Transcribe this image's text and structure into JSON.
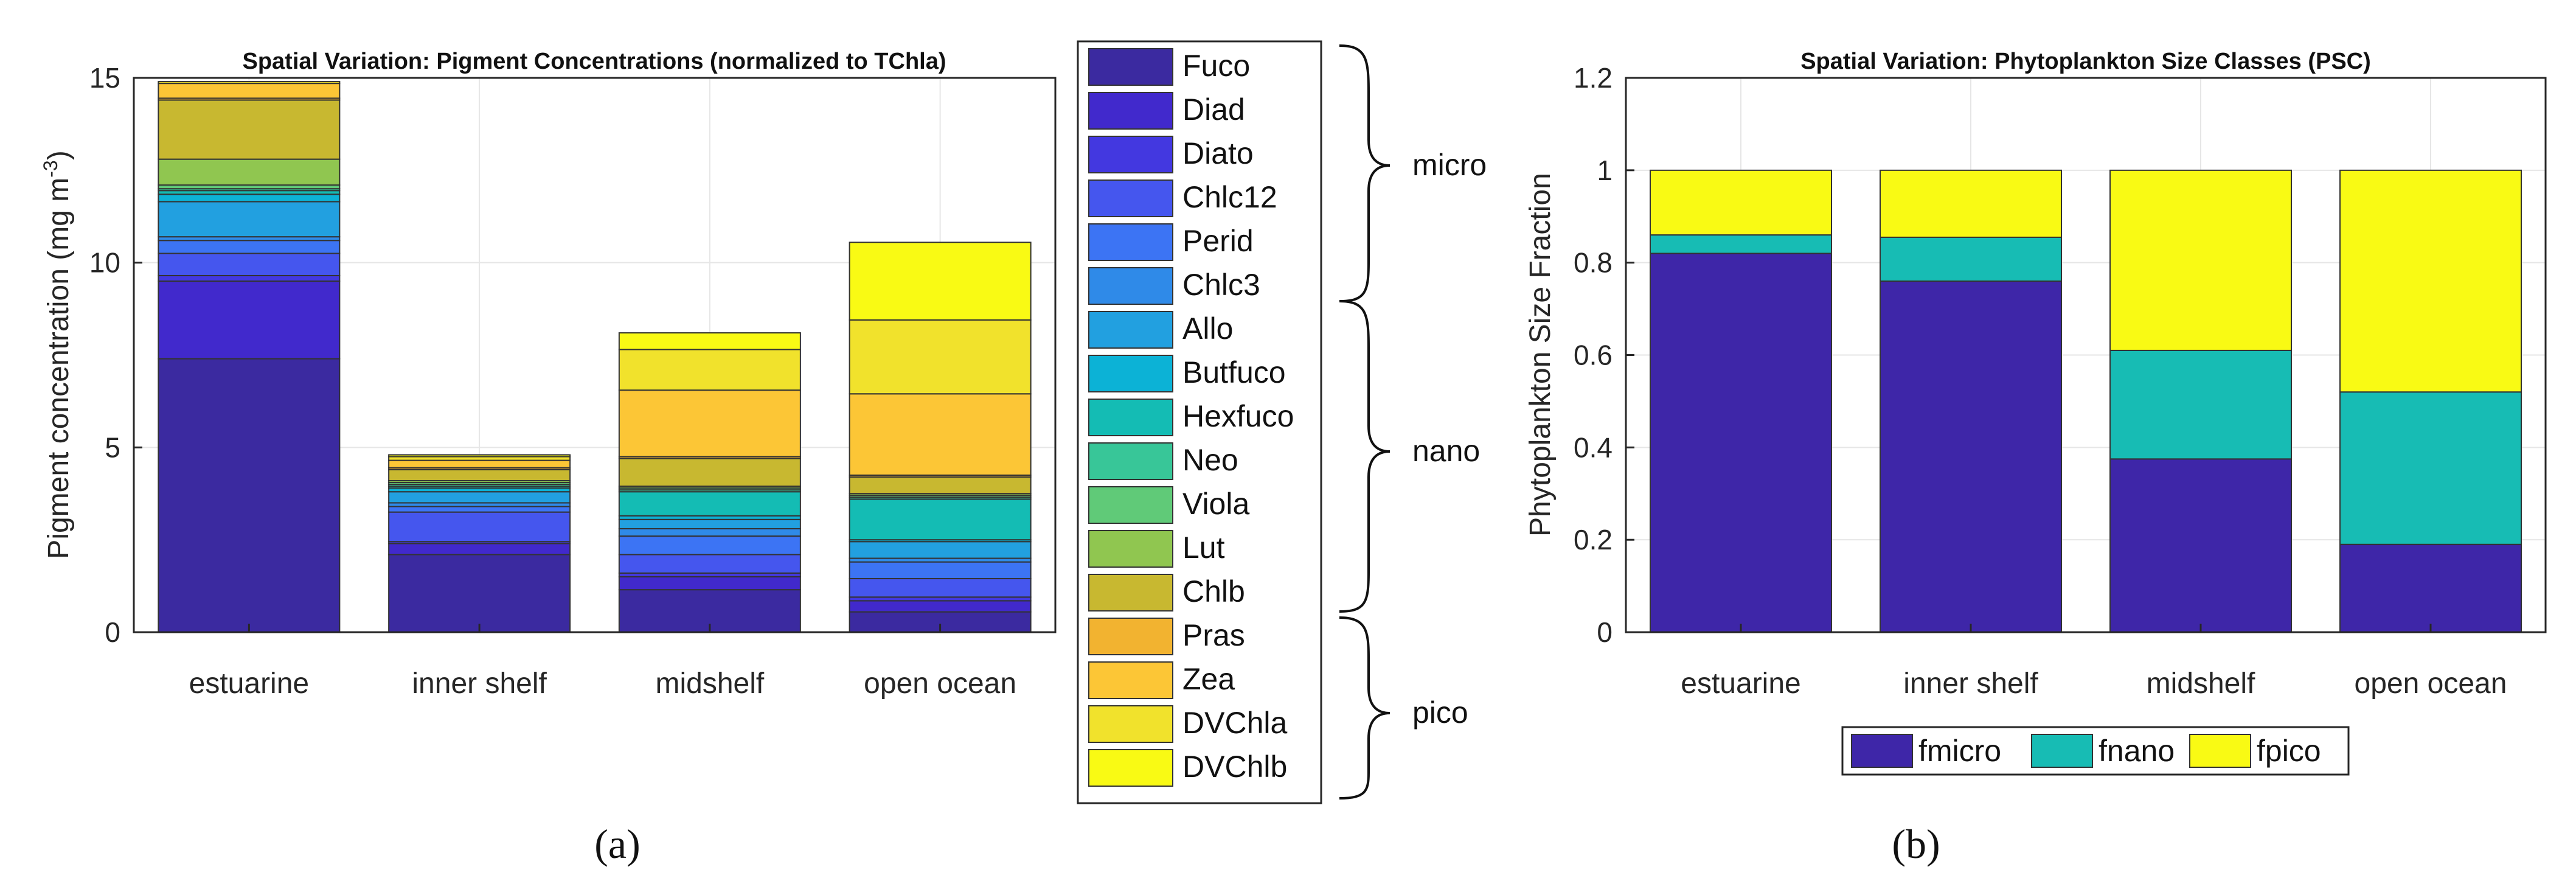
{
  "chart_data": [
    {
      "type": "bar",
      "stacked": true,
      "title": "Spatial Variation: Pigment Concentrations (normalized to TChla)",
      "xlabel": "",
      "ylabel_main": "Pigment concentration (mg m",
      "ylabel_sup": "-3",
      "ylabel_close": ")",
      "ylim": [
        0,
        15
      ],
      "yticks": [
        0,
        5,
        10,
        15
      ],
      "ytick_labels": [
        "0",
        "5",
        "10",
        "15"
      ],
      "grid": true,
      "categories": [
        "estuarine",
        "inner shelf",
        "midshelf",
        "open ocean"
      ],
      "series": [
        {
          "name": "Fuco",
          "color": "#3b2aa0",
          "values": [
            7.4,
            2.1,
            1.15,
            0.55
          ]
        },
        {
          "name": "Diad",
          "color": "#4129cc",
          "values": [
            2.1,
            0.3,
            0.35,
            0.3
          ]
        },
        {
          "name": "Diato",
          "color": "#4338e0",
          "values": [
            0.15,
            0.05,
            0.1,
            0.1
          ]
        },
        {
          "name": "Chlc12",
          "color": "#4556ee",
          "values": [
            0.6,
            0.8,
            0.5,
            0.5
          ]
        },
        {
          "name": "Perid",
          "color": "#3c74f4",
          "values": [
            0.35,
            0.15,
            0.5,
            0.45
          ]
        },
        {
          "name": "Chlc3",
          "color": "#2f8ae8",
          "values": [
            0.1,
            0.1,
            0.2,
            0.1
          ]
        },
        {
          "name": "Allo",
          "color": "#22a0e0",
          "values": [
            0.95,
            0.3,
            0.25,
            0.45
          ]
        },
        {
          "name": "Butfuco",
          "color": "#0cb2d6",
          "values": [
            0.2,
            0.1,
            0.1,
            0.05
          ]
        },
        {
          "name": "Hexfuco",
          "color": "#14bcb4",
          "values": [
            0.1,
            0.05,
            0.65,
            1.1
          ]
        },
        {
          "name": "Neo",
          "color": "#38c698",
          "values": [
            0.05,
            0.05,
            0.05,
            0.05
          ]
        },
        {
          "name": "Viola",
          "color": "#60ca78",
          "values": [
            0.1,
            0.05,
            0.05,
            0.05
          ]
        },
        {
          "name": "Lut",
          "color": "#90c650",
          "values": [
            0.7,
            0.05,
            0.05,
            0.05
          ]
        },
        {
          "name": "Chlb",
          "color": "#c8b830",
          "values": [
            1.6,
            0.3,
            0.75,
            0.45
          ]
        },
        {
          "name": "Pras",
          "color": "#f2b330",
          "values": [
            0.05,
            0.05,
            0.05,
            0.05
          ]
        },
        {
          "name": "Zea",
          "color": "#fcc636",
          "values": [
            0.4,
            0.2,
            1.8,
            2.2
          ]
        },
        {
          "name": "DVChla",
          "color": "#f1e22c",
          "values": [
            0.05,
            0.1,
            1.1,
            2.0
          ]
        },
        {
          "name": "DVChlb",
          "color": "#f9fa14",
          "values": [
            0.0,
            0.05,
            0.45,
            2.1
          ]
        }
      ],
      "groups": [
        {
          "label": "micro",
          "from": "Fuco",
          "to": "Chlc3"
        },
        {
          "label": "nano",
          "from": "Allo",
          "to": "Chlb"
        },
        {
          "label": "pico",
          "from": "Pras",
          "to": "DVChlb"
        }
      ],
      "caption": "(a)"
    },
    {
      "type": "bar",
      "stacked": true,
      "title": "Spatial Variation: Phytoplankton Size Classes (PSC)",
      "xlabel": "",
      "ylabel": "Phytoplankton Size Fraction",
      "ylim": [
        0,
        1.2
      ],
      "yticks": [
        0,
        0.2,
        0.4,
        0.6,
        0.8,
        1,
        1.2
      ],
      "ytick_labels": [
        "0",
        "0.2",
        "0.4",
        "0.6",
        "0.8",
        "1",
        "1.2"
      ],
      "grid": true,
      "categories": [
        "estuarine",
        "inner shelf",
        "midshelf",
        "open ocean"
      ],
      "series": [
        {
          "name": "fmicro",
          "color": "#3e26a8",
          "values": [
            0.82,
            0.76,
            0.375,
            0.19
          ]
        },
        {
          "name": "fnano",
          "color": "#17bcb4",
          "values": [
            0.04,
            0.095,
            0.235,
            0.33
          ]
        },
        {
          "name": "fpico",
          "color": "#f9fa14",
          "values": [
            0.14,
            0.145,
            0.39,
            0.48
          ]
        }
      ],
      "legend_position": "bottom",
      "caption": "(b)"
    }
  ]
}
